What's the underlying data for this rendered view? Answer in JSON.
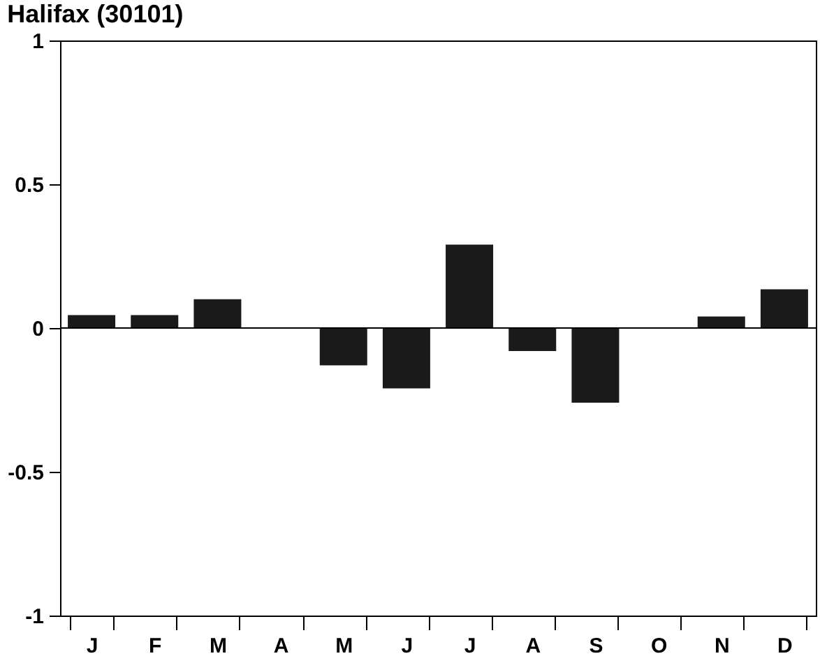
{
  "chart_data": {
    "type": "bar",
    "title": "Halifax (30101)",
    "categories": [
      "J",
      "F",
      "M",
      "A",
      "M",
      "J",
      "J",
      "A",
      "S",
      "O",
      "N",
      "D"
    ],
    "values": [
      0.045,
      0.045,
      0.1,
      0,
      -0.13,
      -0.21,
      0.29,
      -0.08,
      -0.26,
      0,
      0.04,
      0.135
    ],
    "color": "#1a1a1a",
    "ylim": [
      -1,
      1
    ],
    "yticks": [
      -1,
      -0.5,
      0,
      0.5,
      1
    ],
    "ref_lines": [
      {
        "axis": "y",
        "value": 0,
        "label": null
      }
    ],
    "grid": false
  }
}
